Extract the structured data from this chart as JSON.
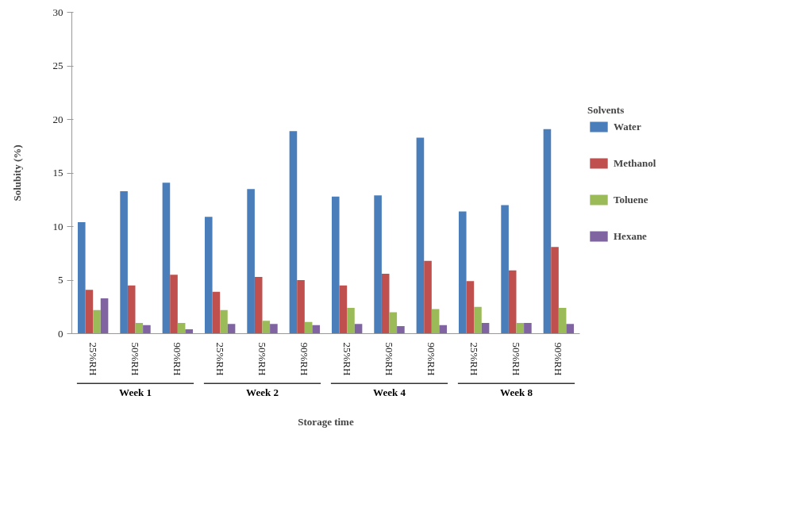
{
  "chart_data": {
    "type": "bar",
    "xlabel": "Storage time",
    "ylabel": "Solubity (%)",
    "legend_title": "Solvents",
    "categories": [
      "25%RH",
      "50%RH",
      "90%RH",
      "25%RH",
      "50%RH",
      "90%RH",
      "25%RH",
      "50%RH",
      "90%RH",
      "25%RH",
      "50%RH",
      "90%RH"
    ],
    "annotations": [
      "Week 1",
      "Week 2",
      "Week 4",
      "Week 8"
    ],
    "series": [
      {
        "name": "Water",
        "color": "#4a7ebb",
        "values": [
          10.4,
          13.3,
          14.1,
          10.9,
          13.5,
          18.9,
          12.8,
          12.9,
          18.3,
          11.4,
          12.0,
          19.1
        ]
      },
      {
        "name": "Methanol",
        "color": "#c0504d",
        "values": [
          4.1,
          4.5,
          5.5,
          3.9,
          5.3,
          5.0,
          4.5,
          5.6,
          6.8,
          4.9,
          5.9,
          8.1
        ]
      },
      {
        "name": "Toluene",
        "color": "#9bbb59",
        "values": [
          2.2,
          1.0,
          1.0,
          2.2,
          1.2,
          1.1,
          2.4,
          2.0,
          2.3,
          2.5,
          1.0,
          2.4
        ]
      },
      {
        "name": "Hexane",
        "color": "#8064a2",
        "values": [
          3.3,
          0.8,
          0.4,
          0.9,
          0.9,
          0.8,
          0.9,
          0.7,
          0.8,
          1.0,
          1.0,
          0.9
        ]
      }
    ],
    "ylim": [
      0,
      30
    ],
    "yticks": [
      0,
      5,
      10,
      15,
      20,
      25,
      30
    ],
    "grid": false,
    "legend": "right"
  }
}
